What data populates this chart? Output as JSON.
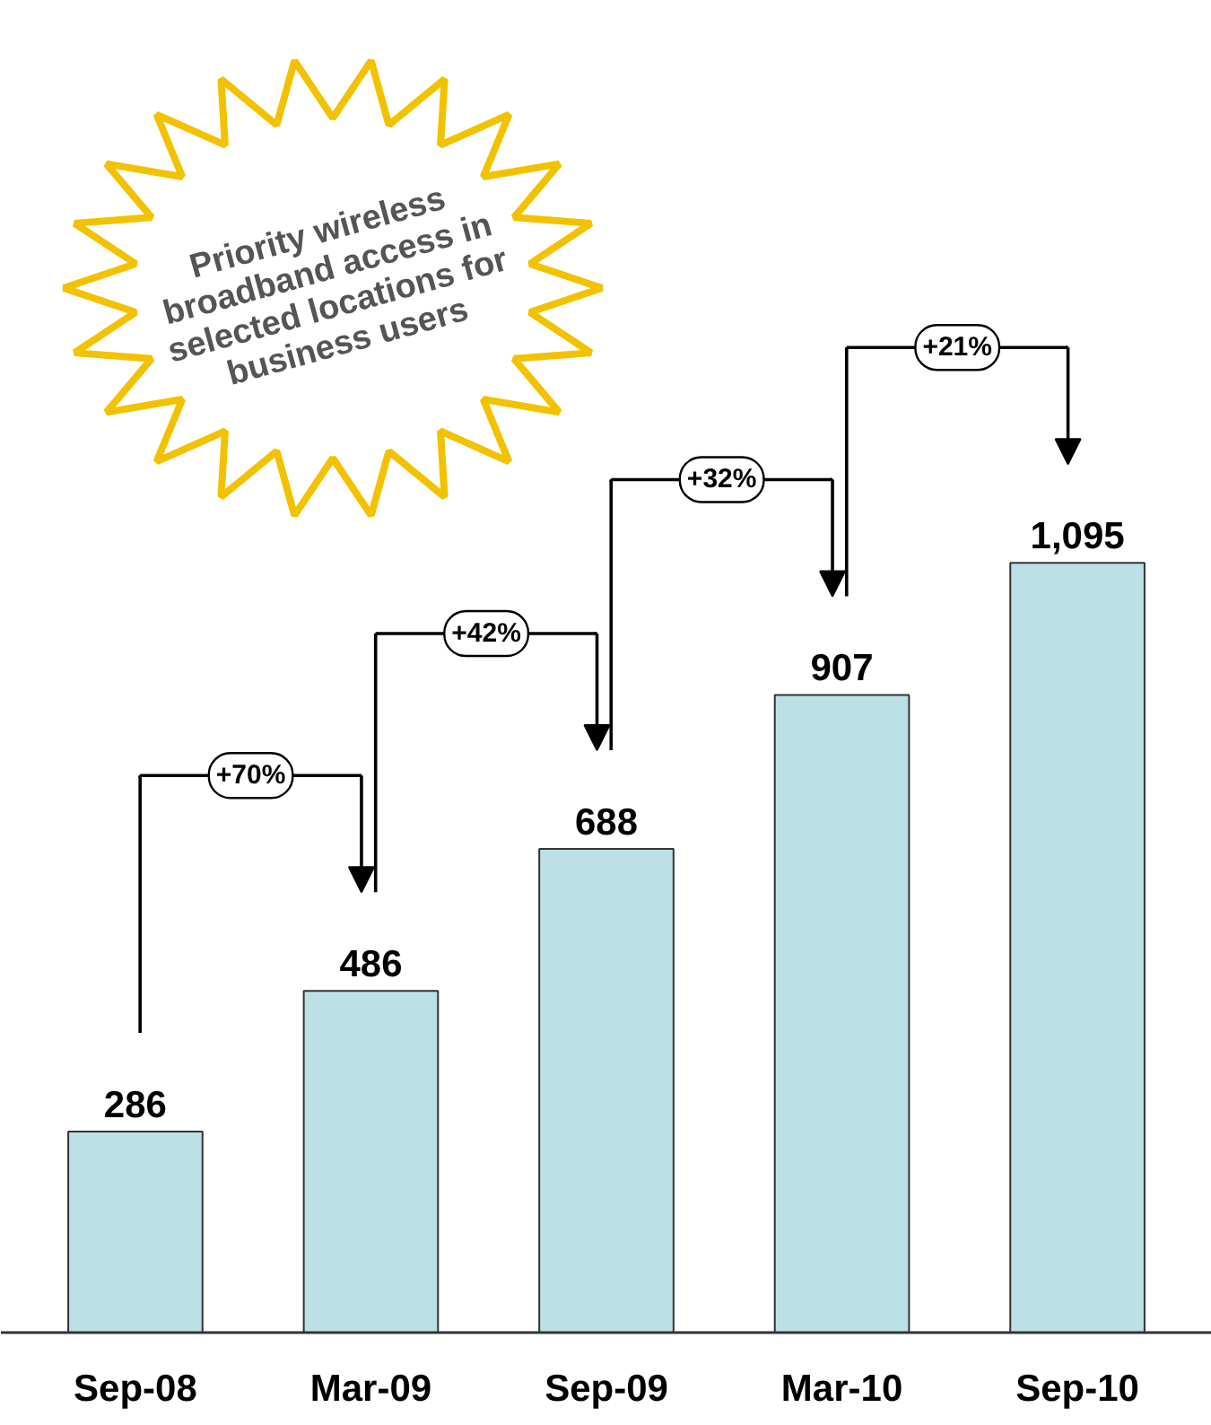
{
  "chart_data": {
    "type": "bar",
    "categories": [
      "Sep-08",
      "Mar-09",
      "Sep-09",
      "Mar-10",
      "Sep-10"
    ],
    "values": [
      286,
      486,
      688,
      907,
      1095
    ],
    "color": "#bde0e6",
    "value_labels": [
      "286",
      "486",
      "688",
      "907",
      "1,095"
    ],
    "annotations": [
      "Priority wireless\nbroadband access in\nselected locations for\nbusiness users",
      "+70%",
      "+42%",
      "+32%",
      "+21%"
    ]
  }
}
